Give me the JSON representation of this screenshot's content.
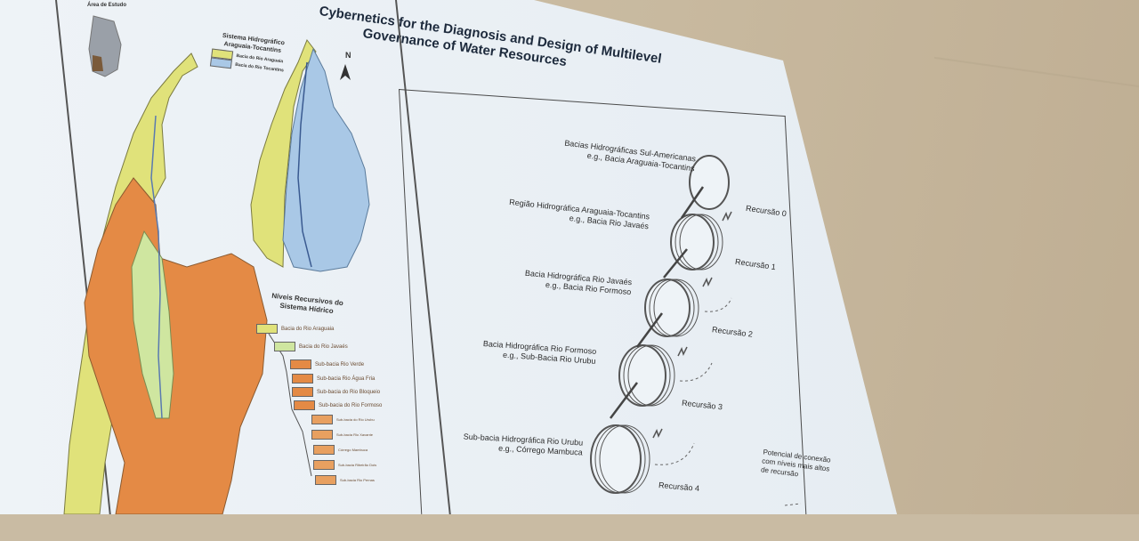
{
  "slide": {
    "title_line1": "Cybernetics for the Diagnosis and Design of Multilevel",
    "title_line2": "Governance of Water Resources"
  },
  "map": {
    "inset_label": "Área de Estudo",
    "legend_title": "Sistema Hidrográfico Araguaia-Tocantins",
    "legend_items": [
      "Bacia do Rio Araguaia",
      "Bacia do Rio Tocantins"
    ],
    "north": "N",
    "levels_title": "Níveis Recursivos do Sistema Hídrico",
    "level_items": [
      "Bacia do Rio Araguaia",
      "Bacia do Rio Javaés",
      "Sub-bacia Rio Verde",
      "Sub-bacia Rio Água Fria",
      "Sub-bacia do Rio Bloqueio",
      "Sub-bacia do Rio Formoso",
      "Sub-bacia do Rio Urubu",
      "Sub-bacia Rio Xavante",
      "Córrego Mambuca",
      "Sub-bacia Ribeirão Dois",
      "Sub-bacia Rio Pernas"
    ]
  },
  "diagram": {
    "levels": [
      {
        "name": "Bacias Hidrográficas Sul-Americanas",
        "eg": "e.g., Bacia Araguaia-Tocantins"
      },
      {
        "name": "Região Hidrográfica Araguaia-Tocantins",
        "eg": "e.g., Bacia Rio Javaés"
      },
      {
        "name": "Bacia Hidrográfica Rio Javaés",
        "eg": "e.g., Bacia Rio Formoso"
      },
      {
        "name": "Bacia Hidrográfica Rio Formoso",
        "eg": "e.g., Sub-Bacia Rio Urubu"
      },
      {
        "name": "Sub-bacia Hidrográfica Rio Urubu",
        "eg": "e.g., Córrego Mambuca"
      }
    ],
    "recursions": [
      "Recursão 0",
      "Recursão 1",
      "Recursão 2",
      "Recursão 3",
      "Recursão 4"
    ],
    "note_line1": "Potencial de conexão",
    "note_line2": "com níveis mais altos",
    "note_line3": "de recursão"
  },
  "colors": {
    "screen": "#eef3f7",
    "wall": "#c9bba3",
    "araguaia": "#e0e27a",
    "tocantins": "#a9c8e6",
    "sub_basin": "#e48a45",
    "javaes": "#cfe6a0"
  }
}
